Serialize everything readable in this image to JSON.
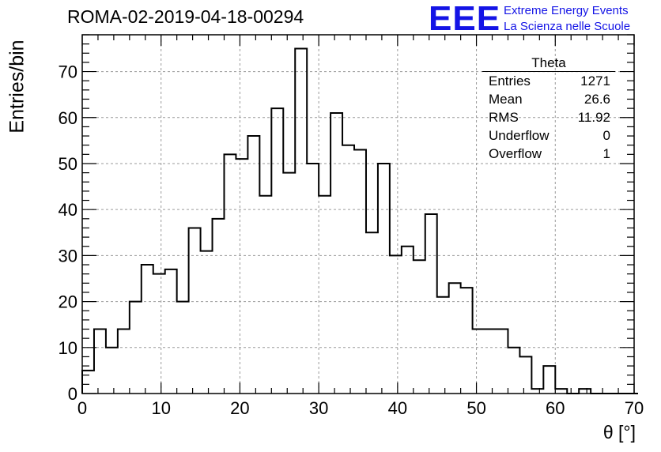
{
  "header": {
    "run_title": "ROMA-02-2019-04-18-00294",
    "logo_letters": "EEE",
    "logo_line1": "Extreme Energy Events",
    "logo_line2": "La Scienza nelle Scuole",
    "logo_color": "#1414e6"
  },
  "stats": {
    "title": "Theta",
    "rows": [
      {
        "label": "Entries",
        "value": "1271"
      },
      {
        "label": "Mean",
        "value": "26.6"
      },
      {
        "label": "RMS",
        "value": "11.92"
      },
      {
        "label": "Underflow",
        "value": "0"
      },
      {
        "label": "Overflow",
        "value": "1"
      }
    ]
  },
  "chart_data": {
    "type": "histogram",
    "title": "ROMA-02-2019-04-18-00294",
    "xlabel": "θ [°]",
    "ylabel": "Entries/bin",
    "xlim": [
      0,
      70
    ],
    "ylim": [
      0,
      78
    ],
    "x_ticks": [
      0,
      10,
      20,
      30,
      40,
      50,
      60,
      70
    ],
    "y_ticks": [
      0,
      10,
      20,
      30,
      40,
      50,
      60,
      70
    ],
    "grid": true,
    "bin_width": 1.5,
    "bin_edges_start": 0,
    "values": [
      5,
      14,
      10,
      14,
      20,
      28,
      26,
      27,
      20,
      36,
      31,
      38,
      52,
      51,
      56,
      43,
      62,
      48,
      75,
      50,
      43,
      61,
      54,
      53,
      35,
      50,
      30,
      32,
      29,
      39,
      21,
      24,
      23,
      14,
      14,
      14,
      10,
      8,
      1,
      6,
      1,
      0,
      1,
      0,
      0,
      0,
      0
    ],
    "line_color": "#000000"
  }
}
